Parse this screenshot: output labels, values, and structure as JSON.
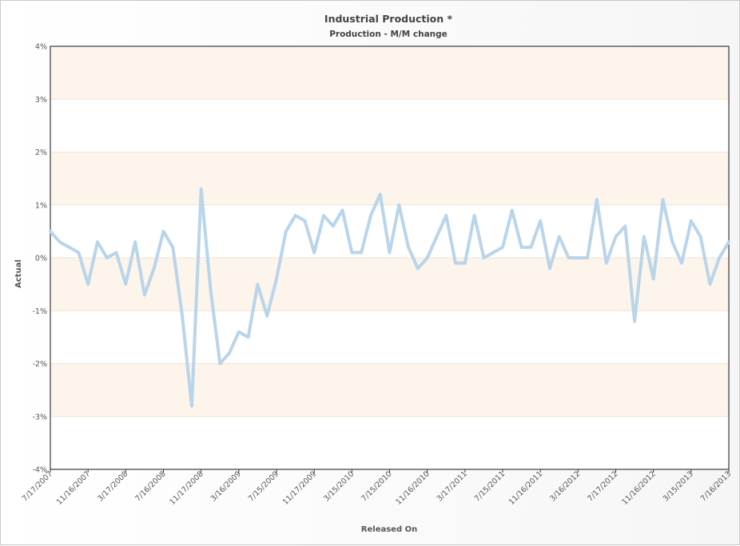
{
  "chart_data": {
    "type": "line",
    "title": "Industrial Production *",
    "subtitle": "Production - M/M change",
    "xlabel": "Released On",
    "ylabel": "Actual",
    "ylim": [
      -4,
      4
    ],
    "y_ticks": [
      "4%",
      "3%",
      "2%",
      "1%",
      "0%",
      "-1%",
      "-2%",
      "-3%",
      "-4%"
    ],
    "y_tick_values": [
      4,
      3,
      2,
      1,
      0,
      -1,
      -2,
      -3,
      -4
    ],
    "x_tick_labels": [
      "7/17/2007",
      "11/16/2007",
      "3/17/2008",
      "7/16/2008",
      "11/17/2008",
      "3/16/2009",
      "7/15/2009",
      "11/17/2009",
      "3/15/2010",
      "7/15/2010",
      "11/16/2010",
      "3/17/2011",
      "7/15/2011",
      "11/16/2011",
      "3/16/2012",
      "7/17/2012",
      "11/16/2012",
      "3/15/2013",
      "7/16/2013"
    ],
    "grid": true,
    "band_colors": [
      "#fdf4ec",
      "#ffffff"
    ],
    "line_color": "#b5d3ea",
    "series": [
      {
        "values": [
          0.5,
          0.3,
          0.2,
          0.1,
          -0.5,
          0.3,
          0.0,
          0.1,
          -0.5,
          0.3,
          -0.7,
          -0.2,
          0.5,
          0.2,
          -1.1,
          -2.8,
          1.3,
          -0.6,
          -2.0,
          -1.8,
          -1.4,
          -1.5,
          -0.5,
          -1.1,
          -0.4,
          0.5,
          0.8,
          0.7,
          0.1,
          0.8,
          0.6,
          0.9,
          0.1,
          0.1,
          0.8,
          1.2,
          0.1,
          1.0,
          0.2,
          -0.2,
          0.0,
          0.4,
          0.8,
          -0.1,
          -0.1,
          0.8,
          0.0,
          0.1,
          0.2,
          0.9,
          0.2,
          0.2,
          0.7,
          -0.2,
          0.4,
          0.0,
          0.0,
          0.0,
          1.1,
          -0.1,
          0.4,
          0.6,
          -1.2,
          0.4,
          -0.4,
          1.1,
          0.3,
          -0.1,
          0.7,
          0.4,
          -0.5,
          0.0,
          0.3
        ]
      }
    ]
  }
}
